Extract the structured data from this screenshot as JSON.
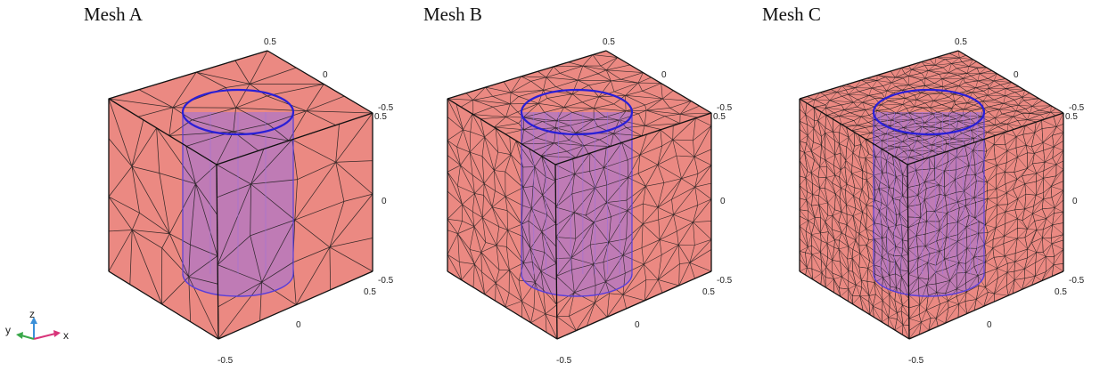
{
  "panels": [
    {
      "title": "Mesh A",
      "density": 4
    },
    {
      "title": "Mesh B",
      "density": 9
    },
    {
      "title": "Mesh C",
      "density": 16
    }
  ],
  "ticks": {
    "top_back": "0.5",
    "top_mid": "0",
    "top_right_a": "-0.5",
    "top_right_b": "0.5",
    "mid_right": "0",
    "bot_right_a": "-0.5",
    "bot_right_b": "0.5",
    "bot_mid": "0",
    "bot_low": "-0.5"
  },
  "axes_triad": {
    "z": "z",
    "y": "y",
    "x": "x"
  },
  "colors": {
    "box": "#e8746c",
    "cylinder": "#9b6fe0",
    "edge": "#1a1a1a",
    "circle": "#2a1fd6"
  }
}
